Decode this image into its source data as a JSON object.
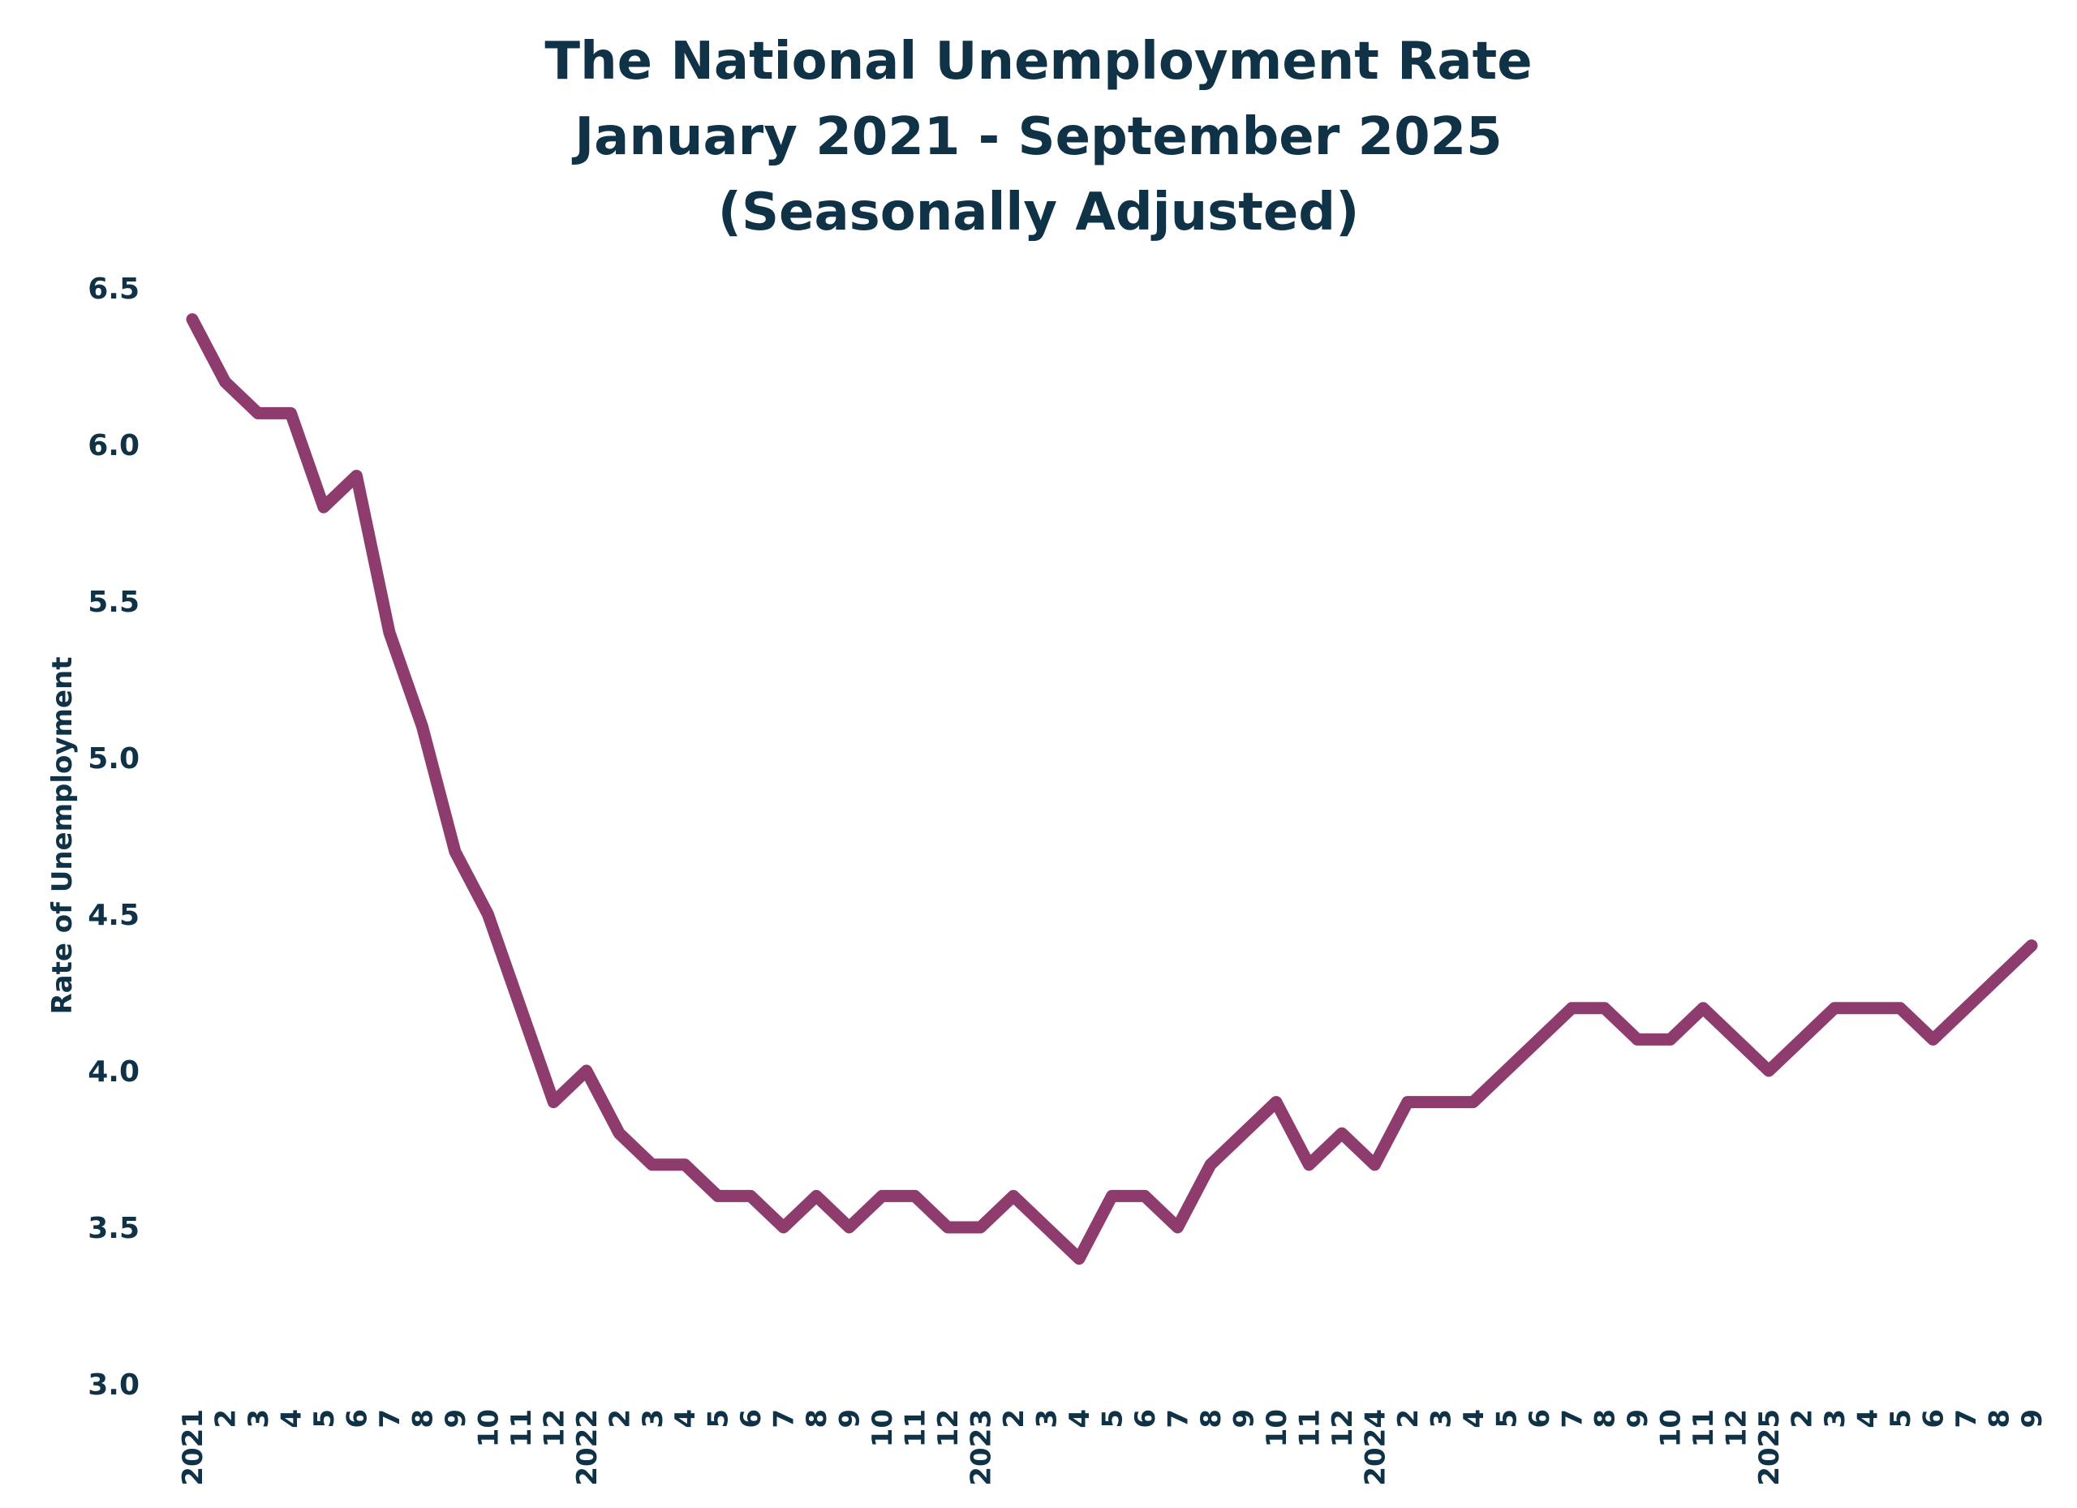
{
  "chart_data": {
    "type": "line",
    "title": [
      "The National Unemployment Rate",
      "January 2021 - September 2025",
      "(Seasonally Adjusted)"
    ],
    "xlabel": "",
    "ylabel": "Rate of Unemployment",
    "ylim": [
      3.0,
      6.5
    ],
    "yticks": [
      "3.0",
      "3.5",
      "4.0",
      "4.5",
      "5.0",
      "5.5",
      "6.0",
      "6.5"
    ],
    "grid": false,
    "legend": "none",
    "line_color": "#8e3b6e",
    "text_color": "#0f3247",
    "categories": [
      "2021",
      "2",
      "3",
      "4",
      "5",
      "6",
      "7",
      "8",
      "9",
      "10",
      "11",
      "12",
      "2022",
      "2",
      "3",
      "4",
      "5",
      "6",
      "7",
      "8",
      "9",
      "10",
      "11",
      "12",
      "2023",
      "2",
      "3",
      "4",
      "5",
      "6",
      "7",
      "8",
      "9",
      "10",
      "11",
      "12",
      "2024",
      "2",
      "3",
      "4",
      "5",
      "6",
      "7",
      "8",
      "9",
      "10",
      "11",
      "12",
      "2025",
      "2",
      "3",
      "4",
      "5",
      "6",
      "7",
      "8",
      "9"
    ],
    "series": [
      {
        "values": [
          6.4,
          6.2,
          6.1,
          6.1,
          5.8,
          5.9,
          5.4,
          5.1,
          4.7,
          4.5,
          4.2,
          3.9,
          4.0,
          3.8,
          3.7,
          3.7,
          3.6,
          3.6,
          3.5,
          3.6,
          3.5,
          3.6,
          3.6,
          3.5,
          3.5,
          3.6,
          3.5,
          3.4,
          3.6,
          3.6,
          3.5,
          3.7,
          3.8,
          3.9,
          3.7,
          3.8,
          3.7,
          3.9,
          3.9,
          3.9,
          4.0,
          4.1,
          4.2,
          4.2,
          4.1,
          4.1,
          4.2,
          4.1,
          4.0,
          4.1,
          4.2,
          4.2,
          4.2,
          4.1,
          4.2,
          4.3,
          4.4
        ]
      }
    ]
  }
}
